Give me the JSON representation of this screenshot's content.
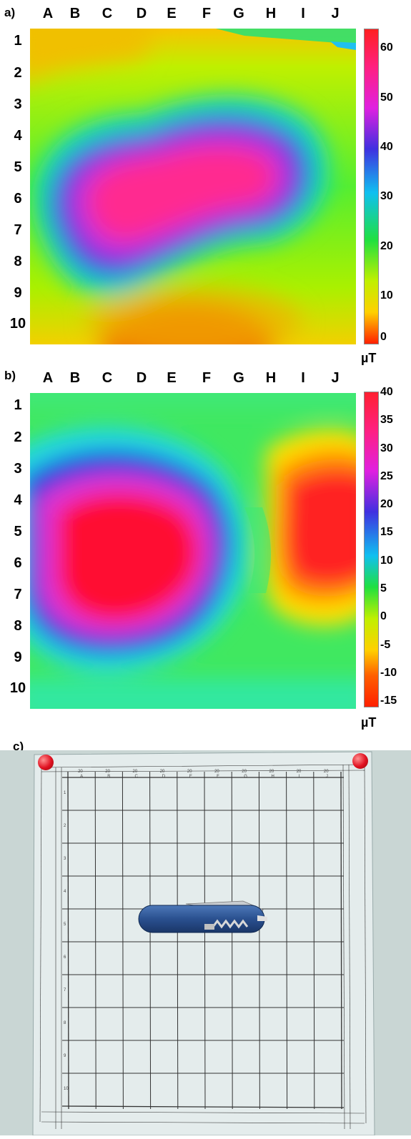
{
  "panels": [
    {
      "label": "a)",
      "columns": [
        "A",
        "B",
        "C",
        "D",
        "E",
        "F",
        "G",
        "H",
        "I",
        "J"
      ],
      "rows": [
        "1",
        "2",
        "3",
        "4",
        "5",
        "6",
        "7",
        "8",
        "9",
        "10"
      ],
      "colorbar": {
        "ticks": [
          "60",
          "50",
          "40",
          "30",
          "20",
          "10",
          "0"
        ],
        "min": 0,
        "max": 65,
        "unit": "µT"
      }
    },
    {
      "label": "b)",
      "columns": [
        "A",
        "B",
        "C",
        "D",
        "E",
        "F",
        "G",
        "H",
        "I",
        "J"
      ],
      "rows": [
        "1",
        "2",
        "3",
        "4",
        "5",
        "6",
        "7",
        "8",
        "9",
        "10"
      ],
      "colorbar": {
        "ticks": [
          "40",
          "35",
          "30",
          "25",
          "20",
          "15",
          "10",
          "5",
          "0",
          "-5",
          "-10",
          "-15"
        ],
        "min": -15,
        "max": 40,
        "unit": "µT"
      }
    }
  ],
  "photo": {
    "label": "c)",
    "sheet_columns": [
      "A",
      "B",
      "C",
      "D",
      "E",
      "F",
      "G",
      "H",
      "I",
      "J"
    ],
    "sheet_widths": [
      "20",
      "20",
      "20",
      "20",
      "20",
      "20",
      "20",
      "20",
      "20",
      "20"
    ],
    "sheet_rows": [
      "1",
      "2",
      "3",
      "4",
      "5",
      "6",
      "7",
      "8",
      "9",
      "10"
    ]
  }
}
